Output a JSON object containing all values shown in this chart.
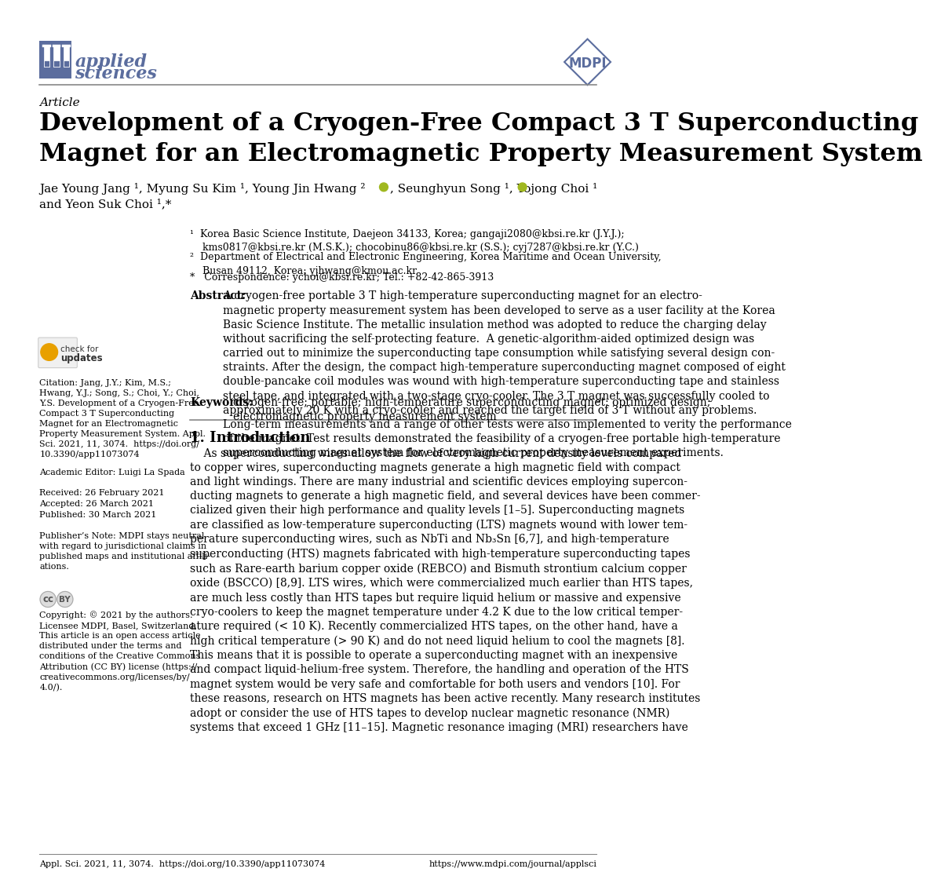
{
  "title": "Development of a Cryogen-Free Compact 3 T Superconducting\nMagnet for an Electromagnetic Property Measurement System",
  "article_label": "Article",
  "journal_name_line1": "applied",
  "journal_name_line2": "sciences",
  "footer_left": "Appl. Sci. 2021, 11, 3074.  https://doi.org/10.3390/app11073074",
  "footer_right": "https://www.mdpi.com/journal/applsci",
  "bg_color": "#ffffff",
  "text_color": "#000000",
  "journal_color": "#5b6d9e",
  "header_line_color": "#888888",
  "section1_title": "1. Introduction",
  "abstract_label": "Abstract:",
  "keywords_label": "Keywords:",
  "editor_text": "Academic Editor: Luigi La Spada",
  "received_text": "Received: 26 February 2021",
  "accepted_text": "Accepted: 26 March 2021",
  "published_text": "Published: 30 March 2021"
}
